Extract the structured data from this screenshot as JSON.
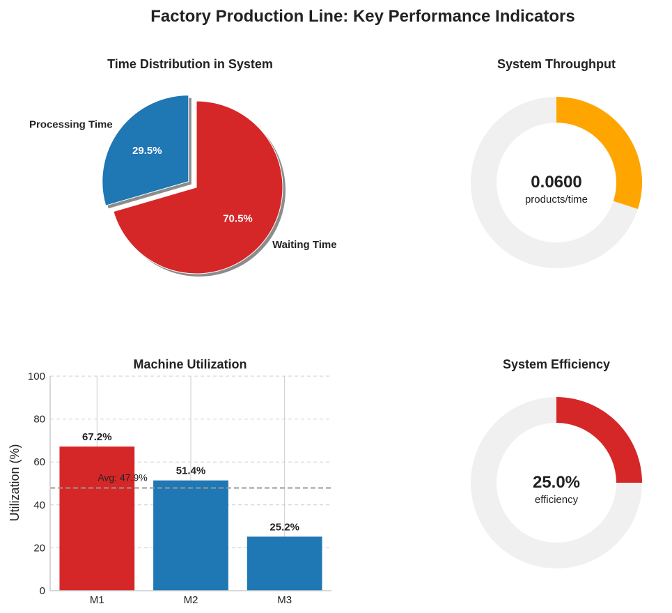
{
  "title": "Factory Production Line: Key Performance Indicators",
  "chart_data": [
    {
      "type": "pie",
      "title": "Time Distribution in System",
      "slices": [
        {
          "label": "Processing Time",
          "value": 29.5,
          "pct_label": "29.5%",
          "color": "#1f77b4",
          "exploded": true
        },
        {
          "label": "Waiting Time",
          "value": 70.5,
          "pct_label": "70.5%",
          "color": "#d62728",
          "exploded": false
        }
      ],
      "shadow": true
    },
    {
      "type": "gauge",
      "title": "System Throughput",
      "value_label": "0.0600",
      "unit_label": "products/time",
      "fill_fraction": 0.3,
      "fill_color": "#ffa500",
      "track_color": "#f0f0f0"
    },
    {
      "type": "bar",
      "title": "Machine Utilization",
      "categories": [
        "M1",
        "M2",
        "M3"
      ],
      "values": [
        67.2,
        51.4,
        25.2
      ],
      "value_labels": [
        "67.2%",
        "51.4%",
        "25.2%"
      ],
      "colors": [
        "#d62728",
        "#1f77b4",
        "#1f77b4"
      ],
      "xlabel": "",
      "ylabel": "Utilization (%)",
      "ylim": [
        0,
        100
      ],
      "yticks": [
        0,
        20,
        40,
        60,
        80,
        100
      ],
      "average": 47.9,
      "average_label": "Avg: 47.9%",
      "grid": true
    },
    {
      "type": "gauge",
      "title": "System Efficiency",
      "value_label": "25.0%",
      "unit_label": "efficiency",
      "fill_fraction": 0.25,
      "fill_color": "#d62728",
      "track_color": "#f0f0f0"
    }
  ]
}
